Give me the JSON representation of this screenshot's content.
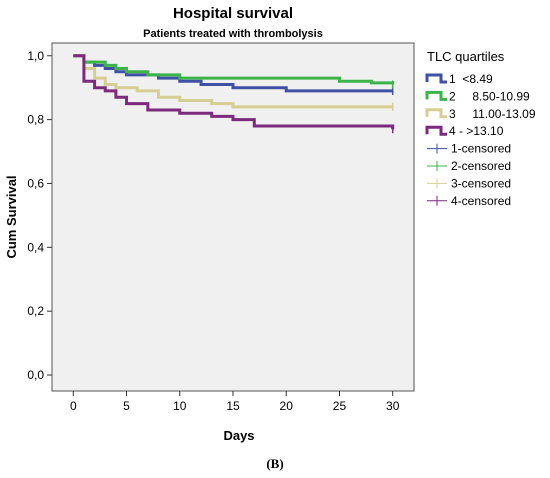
{
  "chart_data": {
    "type": "line",
    "step": true,
    "title": "Hospital survival",
    "subtitle": "Patients treated with thrombolysis",
    "xlabel": "Days",
    "ylabel": "Cum Survival",
    "xlim": [
      -2,
      32
    ],
    "ylim": [
      -0.05,
      1.04
    ],
    "xticks": [
      0,
      5,
      10,
      15,
      20,
      25,
      30
    ],
    "yticks": [
      0.0,
      0.2,
      0.4,
      0.6,
      0.8,
      1.0
    ],
    "ytick_labels": [
      "0,0",
      "0,2",
      "0,4",
      "0,6",
      "0,8",
      "1,0"
    ],
    "legend_title": "TLC quartiles",
    "legend_position": "right",
    "grid": false,
    "background": "#f0f0f0",
    "series": [
      {
        "name": "1  <8.49",
        "color": "#3f51a5",
        "x": [
          0,
          1,
          2,
          3,
          4,
          5,
          8,
          10,
          12,
          15,
          20,
          30
        ],
        "y": [
          1.0,
          0.98,
          0.97,
          0.96,
          0.95,
          0.94,
          0.93,
          0.92,
          0.91,
          0.9,
          0.89,
          0.89
        ]
      },
      {
        "name": "2     8.50-10.99",
        "color": "#3cb44a",
        "x": [
          0,
          1,
          3,
          4,
          5,
          7,
          10,
          25,
          28,
          30
        ],
        "y": [
          1.0,
          0.98,
          0.97,
          0.96,
          0.95,
          0.94,
          0.93,
          0.92,
          0.915,
          0.91
        ]
      },
      {
        "name": "3     11.00-13.09",
        "color": "#d6cf94",
        "x": [
          0,
          1,
          2,
          3,
          4,
          6,
          8,
          10,
          13,
          15,
          30
        ],
        "y": [
          1.0,
          0.96,
          0.93,
          0.91,
          0.9,
          0.89,
          0.87,
          0.86,
          0.85,
          0.84,
          0.84
        ]
      },
      {
        "name": "4 - >13.10",
        "color": "#7b2a7d",
        "x": [
          0,
          1,
          2,
          3,
          4,
          5,
          7,
          10,
          13,
          15,
          17,
          30
        ],
        "y": [
          1.0,
          0.92,
          0.9,
          0.89,
          0.87,
          0.85,
          0.83,
          0.82,
          0.81,
          0.8,
          0.78,
          0.77
        ]
      }
    ],
    "censored_legend": [
      {
        "name": "1-censored",
        "color": "#3f51a5"
      },
      {
        "name": "2-censored",
        "color": "#3cb44a"
      },
      {
        "name": "3-censored",
        "color": "#d6cf94"
      },
      {
        "name": "4-censored",
        "color": "#7b2a7d"
      }
    ]
  },
  "caption": "(B)"
}
